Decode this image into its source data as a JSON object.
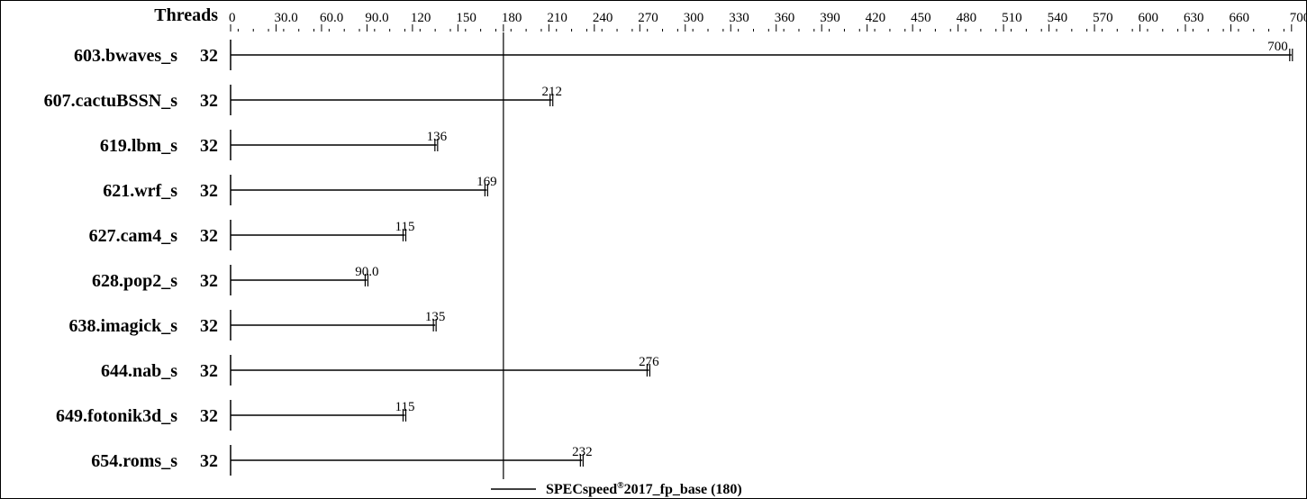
{
  "chart_data": {
    "type": "bar",
    "header_label": "Threads",
    "xlim": [
      0,
      710
    ],
    "ticks": [
      "0",
      "30.0",
      "60.0",
      "90.0",
      "120",
      "150",
      "180",
      "210",
      "240",
      "270",
      "300",
      "330",
      "360",
      "390",
      "420",
      "450",
      "480",
      "510",
      "540",
      "570",
      "600",
      "630",
      "660",
      "700"
    ],
    "tick_values": [
      0,
      30,
      60,
      90,
      120,
      150,
      180,
      210,
      240,
      270,
      300,
      330,
      360,
      390,
      420,
      450,
      480,
      510,
      540,
      570,
      600,
      630,
      660,
      700
    ],
    "categories": [
      "603.bwaves_s",
      "607.cactuBSSN_s",
      "619.lbm_s",
      "621.wrf_s",
      "627.cam4_s",
      "628.pop2_s",
      "638.imagick_s",
      "644.nab_s",
      "649.fotonik3d_s",
      "654.roms_s"
    ],
    "threads": [
      "32",
      "32",
      "32",
      "32",
      "32",
      "32",
      "32",
      "32",
      "32",
      "32"
    ],
    "values": [
      700,
      212,
      136,
      169,
      115,
      90.0,
      135,
      276,
      115,
      232
    ],
    "value_labels": [
      "700",
      "212",
      "136",
      "169",
      "115",
      "90.0",
      "135",
      "276",
      "115",
      "232"
    ],
    "reference": {
      "value": 180
    },
    "legend": {
      "prefix": "SPECspeed",
      "sup": "®",
      "suffix": "2017_fp_base (180)",
      "placement": "bottom"
    },
    "grid": false
  }
}
